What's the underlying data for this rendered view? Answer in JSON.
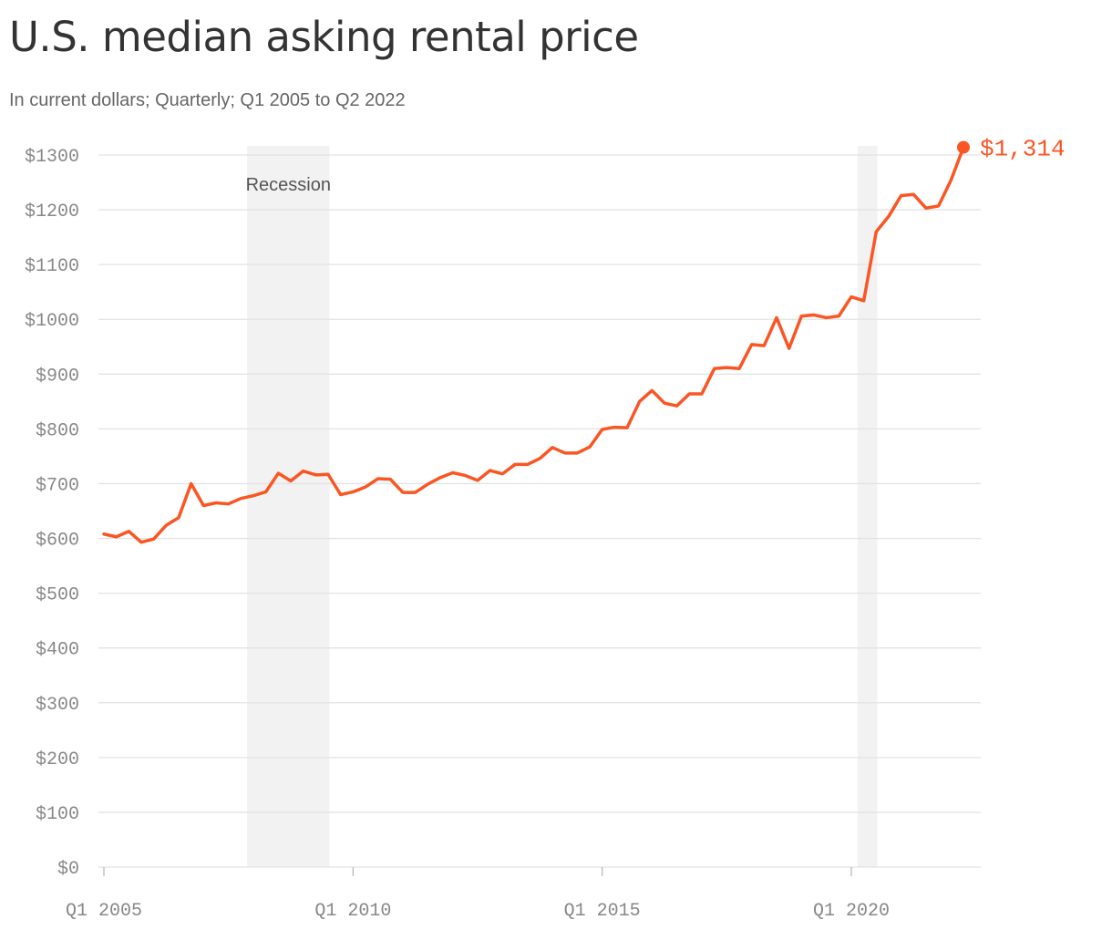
{
  "header": {
    "title": "U.S. median asking rental price",
    "subtitle": "In current dollars; Quarterly; Q1 2005 to Q2 2022"
  },
  "chart_data": {
    "type": "line",
    "title": "U.S. median asking rental price",
    "subtitle": "In current dollars; Quarterly; Q1 2005 to Q2 2022",
    "xlabel": "",
    "ylabel": "",
    "ylim": [
      0,
      1300
    ],
    "y_ticks": [
      0,
      100,
      200,
      300,
      400,
      500,
      600,
      700,
      800,
      900,
      1000,
      1100,
      1200,
      1300
    ],
    "y_tick_labels": [
      "$0",
      "$100",
      "$200",
      "$300",
      "$400",
      "$500",
      "$600",
      "$700",
      "$800",
      "$900",
      "$1000",
      "$1100",
      "$1200",
      "$1300"
    ],
    "x_ticks": [
      "Q1 2005",
      "Q1 2010",
      "Q1 2015",
      "Q1 2020"
    ],
    "grid": true,
    "recession_label": "Recession",
    "recessions": [
      {
        "start": "Q4 2007",
        "end": "Q2 2009"
      },
      {
        "start": "Q1 2020",
        "end": "Q2 2020"
      }
    ],
    "series": [
      {
        "color": "#fa5624",
        "x": [
          "Q1 2005",
          "Q2 2005",
          "Q3 2005",
          "Q4 2005",
          "Q1 2006",
          "Q2 2006",
          "Q3 2006",
          "Q4 2006",
          "Q1 2007",
          "Q2 2007",
          "Q3 2007",
          "Q4 2007",
          "Q1 2008",
          "Q2 2008",
          "Q3 2008",
          "Q4 2008",
          "Q1 2009",
          "Q2 2009",
          "Q3 2009",
          "Q4 2009",
          "Q1 2010",
          "Q2 2010",
          "Q3 2010",
          "Q4 2010",
          "Q1 2011",
          "Q2 2011",
          "Q3 2011",
          "Q4 2011",
          "Q1 2012",
          "Q2 2012",
          "Q3 2012",
          "Q4 2012",
          "Q1 2013",
          "Q2 2013",
          "Q3 2013",
          "Q4 2013",
          "Q1 2014",
          "Q2 2014",
          "Q3 2014",
          "Q4 2014",
          "Q1 2015",
          "Q2 2015",
          "Q3 2015",
          "Q4 2015",
          "Q1 2016",
          "Q2 2016",
          "Q3 2016",
          "Q4 2016",
          "Q1 2017",
          "Q2 2017",
          "Q3 2017",
          "Q4 2017",
          "Q1 2018",
          "Q2 2018",
          "Q3 2018",
          "Q4 2018",
          "Q1 2019",
          "Q2 2019",
          "Q3 2019",
          "Q4 2019",
          "Q1 2020",
          "Q2 2020",
          "Q3 2020",
          "Q4 2020",
          "Q1 2021",
          "Q2 2021",
          "Q3 2021",
          "Q4 2021",
          "Q1 2022",
          "Q2 2022"
        ],
        "values": [
          608,
          603,
          613,
          593,
          599,
          624,
          638,
          700,
          660,
          665,
          663,
          673,
          678,
          685,
          719,
          705,
          723,
          716,
          717,
          680,
          685,
          694,
          709,
          708,
          684,
          684,
          699,
          711,
          720,
          715,
          706,
          724,
          718,
          735,
          735,
          746,
          766,
          756,
          756,
          767,
          799,
          803,
          802,
          850,
          870,
          847,
          842,
          864,
          864,
          910,
          912,
          910,
          954,
          952,
          1003,
          947,
          1006,
          1008,
          1003,
          1006,
          1041,
          1034,
          1160,
          1188,
          1226,
          1228,
          1203,
          1207,
          1254,
          1314
        ]
      }
    ],
    "end_value_label": "$1,314"
  }
}
